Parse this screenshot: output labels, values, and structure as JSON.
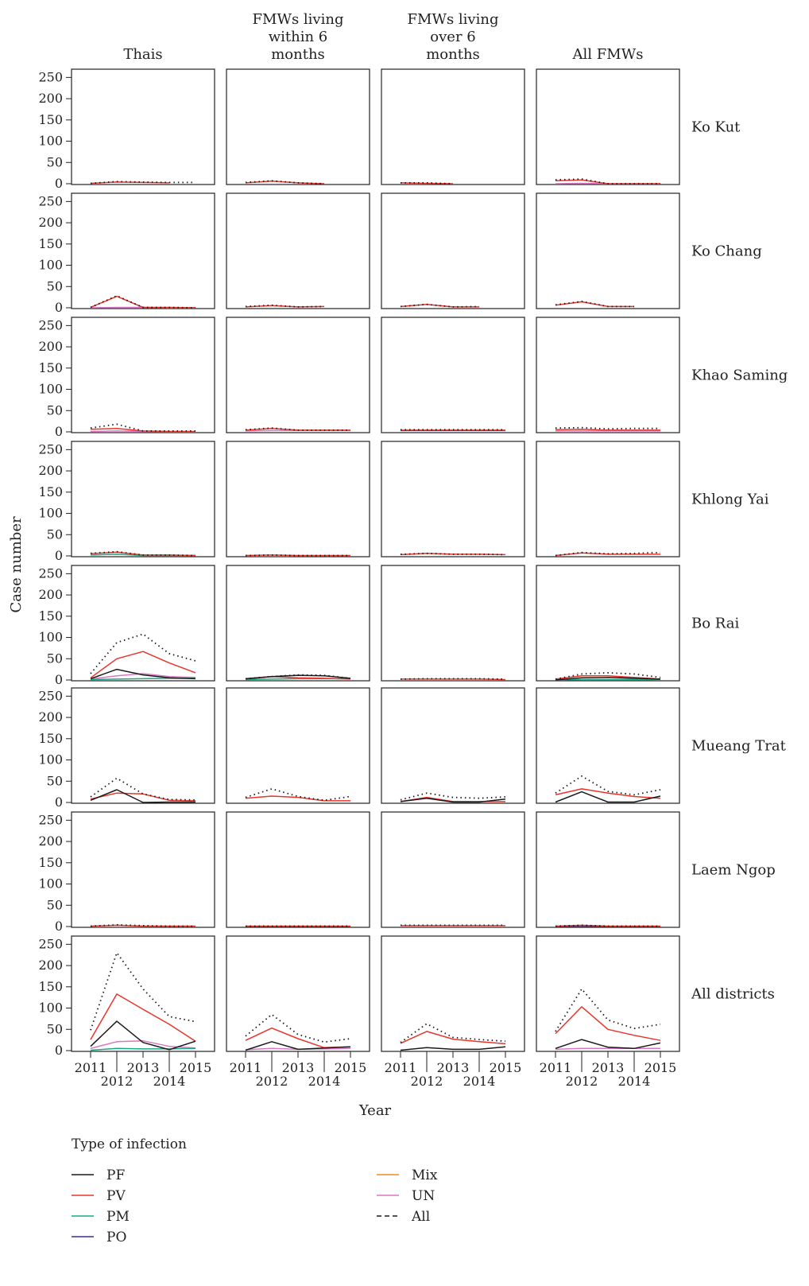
{
  "chart_data": {
    "type": "line",
    "ylabel": "Case number",
    "xlabel": "Year",
    "x": [
      2011,
      2012,
      2013,
      2014,
      2015
    ],
    "xlim": [
      2011,
      2015
    ],
    "ylim": [
      0,
      260
    ],
    "y_ticks": [
      0,
      50,
      100,
      150,
      200,
      250
    ],
    "x_tick_labels": [
      "2011",
      "2012",
      "2013",
      "2014",
      "2015"
    ],
    "columns": [
      "Thais",
      "FMWs living within 6 months",
      "FMWs living over 6 months",
      "All FMWs"
    ],
    "rows": [
      "Ko Kut",
      "Ko Chang",
      "Khao Saming",
      "Khlong Yai",
      "Bo Rai",
      "Mueang Trat",
      "Laem Ngop",
      "All districts"
    ],
    "legend_title": "Type of infection",
    "series_names": [
      "PF",
      "PV",
      "PM",
      "PO",
      "Mix",
      "UN",
      "All"
    ],
    "series_colors": {
      "PF": "#1a1a1a",
      "PV": "#e8352b",
      "PM": "#1aa883",
      "PO": "#3a2e8c",
      "Mix": "#f08a24",
      "UN": "#d877c5",
      "All": "#1a1a1a"
    },
    "panels": [
      [
        {
          "PV": [
            1,
            4,
            3,
            2,
            null
          ],
          "All": [
            1,
            5,
            4,
            3,
            3
          ]
        },
        {
          "PV": [
            2,
            6,
            2,
            0,
            null
          ],
          "All": [
            3,
            7,
            2,
            0,
            null
          ]
        },
        {
          "PV": [
            2,
            1,
            0,
            null,
            null
          ],
          "All": [
            2,
            2,
            0,
            null,
            null
          ]
        },
        {
          "PV": [
            7,
            9,
            0,
            0,
            0
          ],
          "UN": [
            0,
            1,
            0,
            0,
            0
          ],
          "All": [
            9,
            11,
            0,
            0,
            0
          ]
        }
      ],
      [
        {
          "PV": [
            1,
            27,
            1,
            1,
            0
          ],
          "UN": [
            0,
            1,
            1,
            0,
            0
          ],
          "All": [
            1,
            28,
            1,
            1,
            0
          ]
        },
        {
          "PV": [
            2,
            5,
            2,
            3,
            null
          ],
          "All": [
            3,
            6,
            2,
            3,
            null
          ]
        },
        {
          "PV": [
            3,
            8,
            2,
            2,
            null
          ],
          "All": [
            3,
            8,
            2,
            3,
            null
          ]
        },
        {
          "PV": [
            6,
            14,
            3,
            3,
            null
          ],
          "All": [
            7,
            15,
            3,
            3,
            null
          ]
        }
      ],
      [
        {
          "PV": [
            6,
            8,
            2,
            1,
            1
          ],
          "UN": [
            1,
            2,
            1,
            0,
            0
          ],
          "All": [
            9,
            18,
            2,
            2,
            2
          ]
        },
        {
          "PV": [
            4,
            8,
            4,
            4,
            4
          ],
          "UN": [
            2,
            3,
            3,
            3,
            3
          ],
          "All": [
            5,
            9,
            4,
            4,
            4
          ]
        },
        {
          "PV": [
            4,
            4,
            4,
            4,
            4
          ],
          "PO": [
            3,
            3,
            3,
            3,
            3
          ],
          "All": [
            5,
            5,
            5,
            5,
            5
          ]
        },
        {
          "PV": [
            5,
            6,
            4,
            4,
            4
          ],
          "UN": [
            2,
            2,
            2,
            2,
            2
          ],
          "All": [
            9,
            10,
            7,
            8,
            8
          ]
        }
      ],
      [
        {
          "PV": [
            5,
            9,
            2,
            2,
            1
          ],
          "PM": [
            2,
            4,
            1,
            1,
            1
          ],
          "All": [
            6,
            10,
            2,
            2,
            1
          ]
        },
        {
          "PV": [
            1,
            2,
            1,
            1,
            1
          ],
          "All": [
            1,
            2,
            1,
            1,
            1
          ]
        },
        {
          "PV": [
            3,
            6,
            4,
            4,
            3
          ],
          "All": [
            4,
            6,
            4,
            4,
            3
          ]
        },
        {
          "PV": [
            1,
            7,
            4,
            4,
            4
          ],
          "All": [
            1,
            8,
            5,
            6,
            8
          ]
        }
      ],
      [
        {
          "PF": [
            3,
            25,
            12,
            5,
            3
          ],
          "PV": [
            5,
            50,
            67,
            40,
            17
          ],
          "PM": [
            1,
            2,
            3,
            4,
            4
          ],
          "UN": [
            2,
            10,
            15,
            8,
            6
          ],
          "All": [
            15,
            88,
            108,
            62,
            45
          ]
        },
        {
          "PF": [
            3,
            8,
            11,
            10,
            4
          ],
          "PV": [
            2,
            8,
            5,
            4,
            2
          ],
          "PM": [
            1,
            2,
            3,
            3,
            3
          ],
          "All": [
            3,
            8,
            12,
            11,
            4
          ]
        },
        {
          "PV": [
            2,
            2,
            2,
            2,
            1
          ],
          "All": [
            2,
            3,
            3,
            3,
            2
          ]
        },
        {
          "PF": [
            0,
            5,
            6,
            4,
            2
          ],
          "PV": [
            2,
            10,
            10,
            6,
            2
          ],
          "PM": [
            0,
            1,
            1,
            1,
            1
          ],
          "UN": [
            0,
            1,
            1,
            1,
            0
          ],
          "All": [
            2,
            14,
            17,
            14,
            6
          ]
        }
      ],
      [
        {
          "PF": [
            5,
            30,
            0,
            1,
            1
          ],
          "PV": [
            8,
            22,
            20,
            5,
            4
          ],
          "All": [
            13,
            57,
            20,
            7,
            6
          ]
        },
        {
          "PV": [
            10,
            15,
            12,
            4,
            4
          ],
          "All": [
            12,
            32,
            14,
            5,
            14
          ]
        },
        {
          "PF": [
            2,
            10,
            1,
            1,
            8
          ],
          "PV": [
            2,
            12,
            2,
            2,
            2
          ],
          "All": [
            6,
            22,
            12,
            10,
            13
          ]
        },
        {
          "PF": [
            1,
            25,
            1,
            1,
            15
          ],
          "PV": [
            18,
            32,
            22,
            14,
            10
          ],
          "All": [
            22,
            62,
            26,
            18,
            30
          ]
        }
      ],
      [
        {
          "PV": [
            1,
            3,
            1,
            1,
            1
          ],
          "All": [
            1,
            4,
            2,
            1,
            1
          ]
        },
        {
          "PV": [
            1,
            1,
            1,
            1,
            1
          ],
          "PO": [
            0,
            0,
            0,
            0,
            0
          ],
          "All": [
            1,
            1,
            1,
            1,
            1
          ]
        },
        {
          "PV": [
            2,
            2,
            2,
            2,
            2
          ],
          "All": [
            3,
            3,
            3,
            3,
            3
          ]
        },
        {
          "PV": [
            1,
            3,
            1,
            1,
            1
          ],
          "PO": [
            0,
            0,
            0,
            0,
            0
          ],
          "All": [
            1,
            3,
            1,
            1,
            1
          ]
        }
      ],
      [
        {
          "PF": [
            10,
            69,
            19,
            2,
            22
          ],
          "PV": [
            26,
            133,
            97,
            62,
            22
          ],
          "PM": [
            1,
            5,
            4,
            4,
            5
          ],
          "UN": [
            5,
            21,
            23,
            10,
            6
          ],
          "All": [
            48,
            230,
            145,
            80,
            68
          ]
        },
        {
          "PF": [
            1,
            21,
            3,
            6,
            9
          ],
          "PV": [
            24,
            53,
            28,
            7,
            9
          ],
          "UN": [
            2,
            5,
            3,
            4,
            5
          ],
          "All": [
            34,
            85,
            38,
            20,
            28
          ]
        },
        {
          "PF": [
            1,
            7,
            3,
            3,
            9
          ],
          "PV": [
            17,
            45,
            27,
            21,
            16
          ],
          "All": [
            19,
            63,
            31,
            26,
            22
          ]
        },
        {
          "PF": [
            5,
            26,
            8,
            5,
            18
          ],
          "PV": [
            40,
            103,
            50,
            36,
            24
          ],
          "UN": [
            3,
            5,
            5,
            5,
            5
          ],
          "All": [
            45,
            145,
            72,
            52,
            62
          ]
        }
      ]
    ],
    "legend": [
      {
        "name": "PF",
        "style": "solid"
      },
      {
        "name": "PV",
        "style": "solid"
      },
      {
        "name": "PM",
        "style": "solid"
      },
      {
        "name": "PO",
        "style": "solid"
      },
      {
        "name": "Mix",
        "style": "solid"
      },
      {
        "name": "UN",
        "style": "solid"
      },
      {
        "name": "All",
        "style": "dashed"
      }
    ]
  },
  "text": {
    "col_headers": [
      [
        "Thais"
      ],
      [
        "FMWs living",
        "within 6",
        "months"
      ],
      [
        "FMWs living",
        "over 6",
        "months"
      ],
      [
        "All FMWs"
      ]
    ]
  }
}
